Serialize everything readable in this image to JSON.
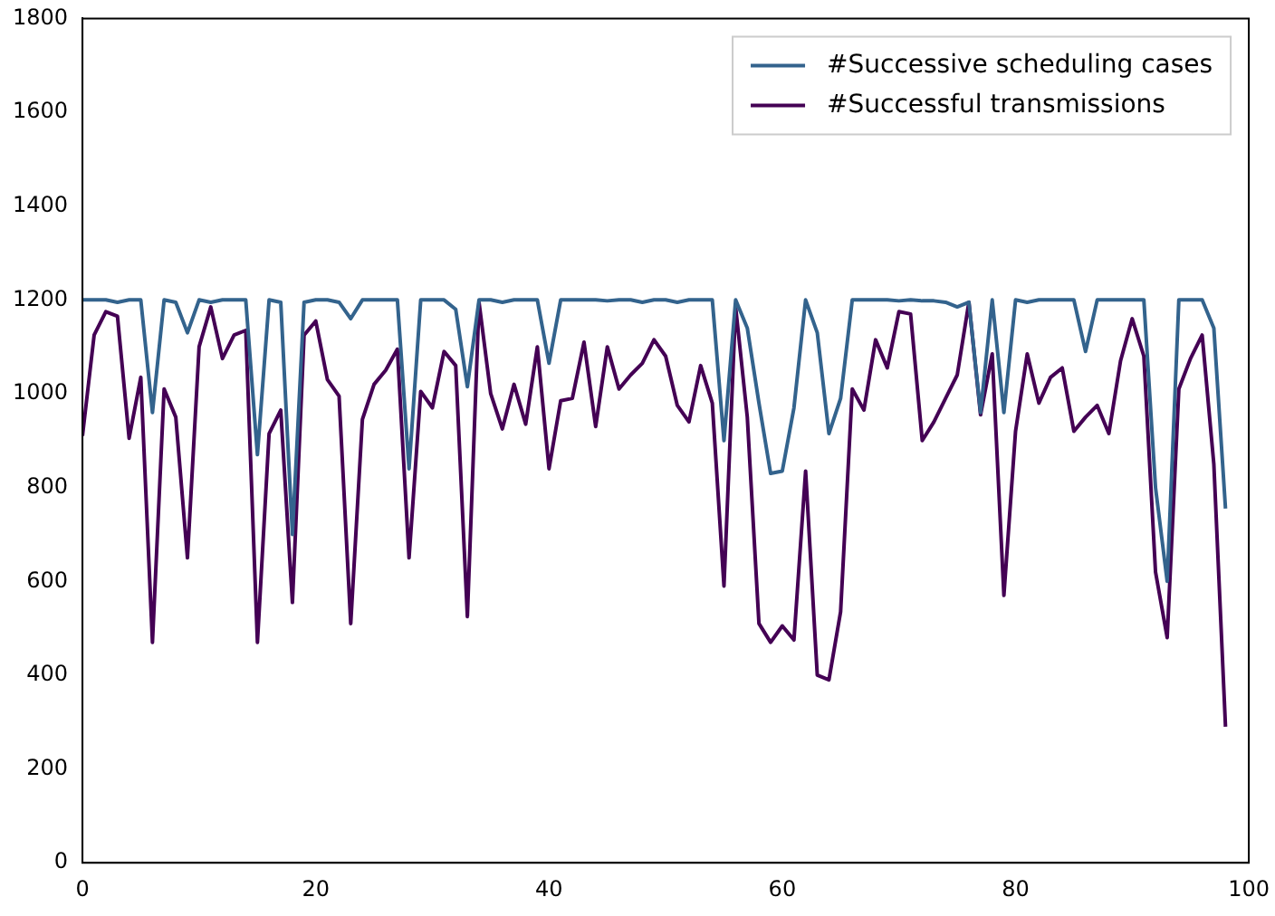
{
  "chart_data": {
    "type": "line",
    "x": [
      0,
      1,
      2,
      3,
      4,
      5,
      6,
      7,
      8,
      9,
      10,
      11,
      12,
      13,
      14,
      15,
      16,
      17,
      18,
      19,
      20,
      21,
      22,
      23,
      24,
      25,
      26,
      27,
      28,
      29,
      30,
      31,
      32,
      33,
      34,
      35,
      36,
      37,
      38,
      39,
      40,
      41,
      42,
      43,
      44,
      45,
      46,
      47,
      48,
      49,
      50,
      51,
      52,
      53,
      54,
      55,
      56,
      57,
      58,
      59,
      60,
      61,
      62,
      63,
      64,
      65,
      66,
      67,
      68,
      69,
      70,
      71,
      72,
      73,
      74,
      75,
      76,
      77,
      78,
      79,
      80,
      81,
      82,
      83,
      84,
      85,
      86,
      87,
      88,
      89,
      90,
      91,
      92,
      93,
      94,
      95,
      96,
      97,
      98
    ],
    "series": [
      {
        "name": "#Successive scheduling cases",
        "color": "#33638d",
        "values": [
          1200,
          1200,
          1200,
          1195,
          1200,
          1200,
          960,
          1200,
          1195,
          1130,
          1200,
          1195,
          1200,
          1200,
          1200,
          870,
          1200,
          1195,
          700,
          1195,
          1200,
          1200,
          1195,
          1160,
          1200,
          1200,
          1200,
          1200,
          840,
          1200,
          1200,
          1200,
          1180,
          1015,
          1200,
          1200,
          1195,
          1200,
          1200,
          1200,
          1065,
          1200,
          1200,
          1200,
          1200,
          1198,
          1200,
          1200,
          1195,
          1200,
          1200,
          1195,
          1200,
          1200,
          1200,
          900,
          1200,
          1140,
          980,
          830,
          835,
          970,
          1200,
          1130,
          915,
          990,
          1200,
          1200,
          1200,
          1200,
          1198,
          1200,
          1198,
          1198,
          1195,
          1185,
          1195,
          960,
          1200,
          960,
          1200,
          1195,
          1200,
          1200,
          1200,
          1200,
          1090,
          1200,
          1200,
          1200,
          1200,
          1200,
          800,
          600,
          1200,
          1200,
          1200,
          1140,
          755
        ]
      },
      {
        "name": "#Successful transmissions",
        "color": "#440154",
        "values": [
          910,
          1125,
          1175,
          1165,
          905,
          1035,
          470,
          1010,
          950,
          650,
          1100,
          1185,
          1075,
          1125,
          1135,
          470,
          915,
          965,
          555,
          1125,
          1155,
          1030,
          995,
          510,
          945,
          1020,
          1050,
          1095,
          650,
          1005,
          970,
          1090,
          1060,
          525,
          1195,
          1000,
          925,
          1020,
          935,
          1100,
          840,
          985,
          990,
          1110,
          930,
          1100,
          1010,
          1040,
          1065,
          1115,
          1080,
          975,
          940,
          1060,
          980,
          590,
          1185,
          950,
          510,
          470,
          505,
          475,
          835,
          400,
          390,
          535,
          1010,
          965,
          1115,
          1055,
          1175,
          1170,
          900,
          940,
          990,
          1040,
          1195,
          955,
          1085,
          570,
          920,
          1085,
          980,
          1035,
          1055,
          920,
          950,
          975,
          915,
          1070,
          1160,
          1080,
          620,
          480,
          1010,
          1075,
          1125,
          850,
          290
        ]
      }
    ],
    "xlim": [
      0,
      100
    ],
    "xticks": [
      0,
      20,
      40,
      60,
      80,
      100
    ],
    "ylim": [
      0,
      1800
    ],
    "yticks": [
      0,
      200,
      400,
      600,
      800,
      1000,
      1200,
      1400,
      1600,
      1800
    ],
    "grid": false,
    "legend": "top right",
    "marker": "none",
    "line_style": "solid"
  }
}
